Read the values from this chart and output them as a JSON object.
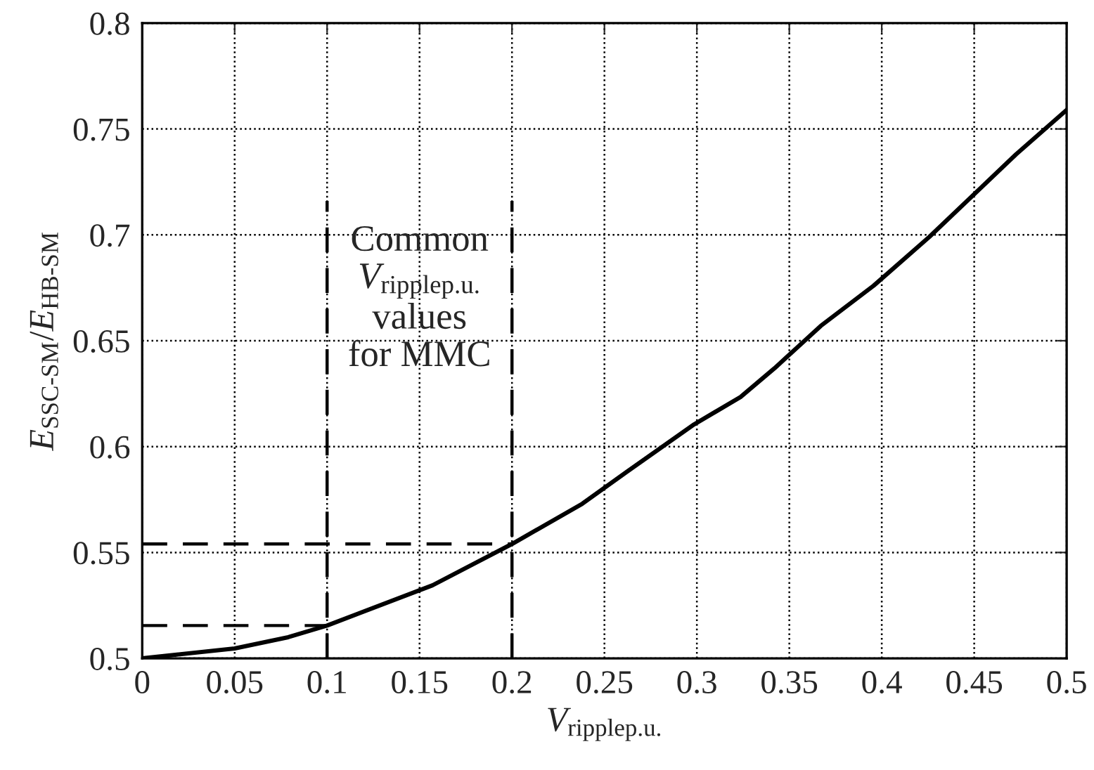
{
  "chart_data": {
    "type": "line",
    "xlabel": "V$_{ripplep.u.}$",
    "ylabel": "E$_{SSC-SM}$/E$_{HB-SM}$",
    "xlim": [
      0,
      0.5
    ],
    "xticks": [
      0,
      0.05,
      0.1,
      0.15,
      0.2,
      0.25,
      0.3,
      0.35,
      0.4,
      0.45,
      0.5
    ],
    "ylim": [
      0.5,
      0.8
    ],
    "yticks": [
      0.5,
      0.55,
      0.6,
      0.65,
      0.7,
      0.75,
      0.8
    ],
    "grid": true,
    "legend": false,
    "series": [
      {
        "color": "#000000",
        "line_style": "solid",
        "x": [
          0,
          0.05,
          0.079,
          0.1,
          0.157,
          0.2,
          0.238,
          0.262,
          0.2985,
          0.3236,
          0.342,
          0.367,
          0.3956,
          0.4257,
          0.4726,
          0.5
        ],
        "values": [
          0.5,
          0.5047,
          0.51,
          0.5155,
          0.5345,
          0.554,
          0.573,
          0.588,
          0.6105,
          0.6234,
          0.637,
          0.657,
          0.676,
          0.699,
          0.738,
          0.759
        ]
      },
      {
        "color": "#000000",
        "line_style": "dashed",
        "x": [
          0,
          0.1
        ],
        "values": [
          0.5155,
          0.5155
        ]
      },
      {
        "color": "#000000",
        "line_style": "dashed",
        "x": [
          0,
          0.2
        ],
        "values": [
          0.554,
          0.554
        ]
      },
      {
        "color": "#000000",
        "line_style": "dashed",
        "x": [
          0.1,
          0.1
        ],
        "values": [
          0.5,
          0.716
        ]
      },
      {
        "color": "#000000",
        "line_style": "dashed",
        "x": [
          0.2,
          0.2
        ],
        "values": [
          0.5,
          0.716
        ]
      }
    ],
    "annotations": [
      "Common\nV$_{ripplep.u.}$\nvalues\nfor MMC"
    ]
  }
}
